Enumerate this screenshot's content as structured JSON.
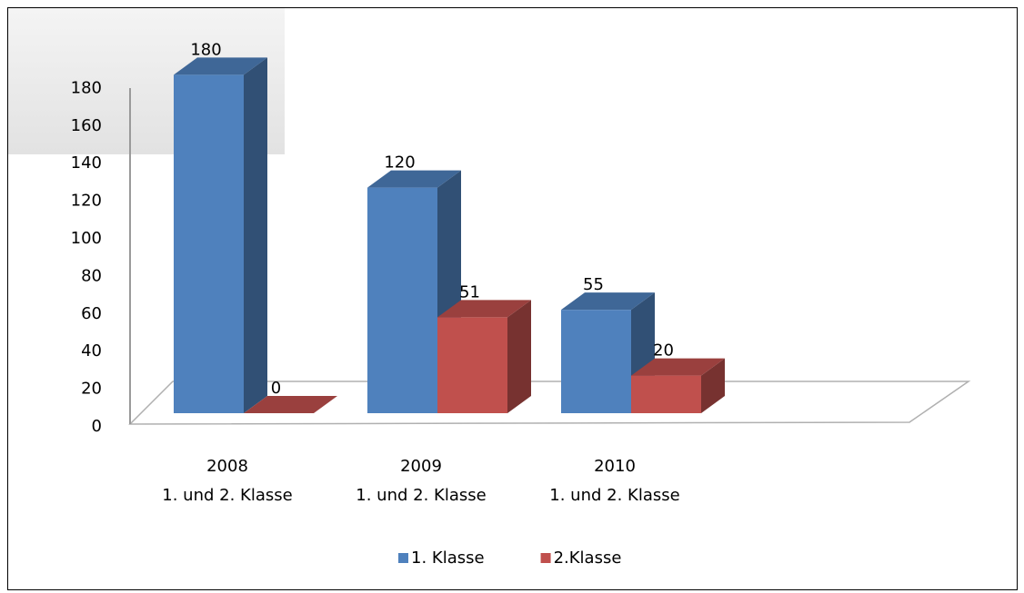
{
  "chart_data": {
    "type": "bar3d",
    "categories": [
      [
        "2008",
        "1. und 2. Klasse"
      ],
      [
        "2009",
        "1. und 2. Klasse"
      ],
      [
        "2010",
        "1. und 2. Klasse"
      ]
    ],
    "series": [
      {
        "name": "1. Klasse",
        "color": "#4f81bd",
        "values": [
          180,
          120,
          55
        ]
      },
      {
        "name": "2.Klasse",
        "color": "#c0504d",
        "values": [
          0,
          51,
          20
        ]
      }
    ],
    "ylim": [
      0,
      180
    ],
    "yticks": [
      0,
      20,
      40,
      60,
      80,
      100,
      120,
      140,
      160,
      180
    ],
    "legend": "bottom"
  }
}
